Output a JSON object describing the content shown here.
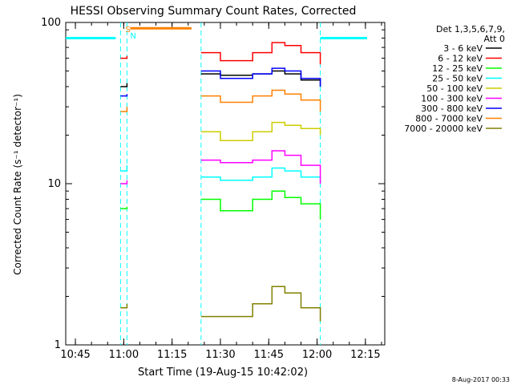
{
  "chart_data": {
    "type": "line",
    "title": "HESSI Observing Summary Count Rates, Corrected",
    "xlabel": "Start Time (19-Aug-15 10:42:02)",
    "ylabel": "Corrected Count Rate (s⁻¹ detector⁻¹)",
    "xlim": [
      "10:42",
      "12:21"
    ],
    "ylim": [
      1,
      100
    ],
    "yscale": "log",
    "x_ticks": [
      "10:45",
      "11:00",
      "11:15",
      "11:30",
      "11:45",
      "12:00",
      "12:15"
    ],
    "y_ticks": [
      "1",
      "10",
      "100"
    ],
    "legend_header": [
      "Det 1,3,5,6,7,9,",
      "Att 0"
    ],
    "legend": [
      {
        "label": "3 - 6 keV",
        "color": "#000000"
      },
      {
        "label": "6 - 12 keV",
        "color": "#ff0000"
      },
      {
        "label": "12 - 25 keV",
        "color": "#00ff00"
      },
      {
        "label": "25 - 50 keV",
        "color": "#00ffff"
      },
      {
        "label": "50 - 100 keV",
        "color": "#cccc00"
      },
      {
        "label": "100 - 300 keV",
        "color": "#ff00ff"
      },
      {
        "label": "300 - 800 keV",
        "color": "#0000ff"
      },
      {
        "label": "800 - 7000 keV",
        "color": "#ff8000"
      },
      {
        "label": "7000 - 20000 keV",
        "color": "#808000"
      }
    ],
    "markers": {
      "saa": "S",
      "night": "N"
    },
    "timestamp": "8-Aug-2017 00:33",
    "intervals": [
      [
        "10:59",
        "11:01"
      ],
      [
        "11:24",
        "12:01"
      ]
    ],
    "series": [
      {
        "name": "3 - 6 keV",
        "color": "#000000",
        "x": [
          "10:59",
          "11:01",
          "11:24",
          "11:30",
          "11:40",
          "11:46",
          "11:50",
          "11:55",
          "12:01"
        ],
        "y": [
          40,
          42,
          48,
          47,
          48,
          50,
          48,
          44,
          40
        ]
      },
      {
        "name": "6 - 12 keV",
        "color": "#ff0000",
        "x": [
          "10:59",
          "11:01",
          "11:24",
          "11:30",
          "11:40",
          "11:46",
          "11:50",
          "11:55",
          "12:01"
        ],
        "y": [
          60,
          62,
          65,
          58,
          65,
          75,
          72,
          65,
          55
        ]
      },
      {
        "name": "12 - 25 keV",
        "color": "#00ff00",
        "x": [
          "10:59",
          "11:01",
          "11:24",
          "11:30",
          "11:40",
          "11:46",
          "11:50",
          "11:55",
          "12:01"
        ],
        "y": [
          7,
          7.2,
          8,
          6.8,
          8,
          9,
          8.2,
          7.5,
          6
        ]
      },
      {
        "name": "25 - 50 keV",
        "color": "#00ffff",
        "x": [
          "10:59",
          "11:01",
          "11:24",
          "11:30",
          "11:40",
          "11:46",
          "11:50",
          "11:55",
          "12:01"
        ],
        "y": [
          12,
          13,
          11,
          10.5,
          11,
          12.5,
          12,
          11,
          10
        ]
      },
      {
        "name": "50 - 100 keV",
        "color": "#cccc00",
        "x": [
          "10:59",
          "11:01",
          "11:24",
          "11:30",
          "11:40",
          "11:46",
          "11:50",
          "11:55",
          "12:01"
        ],
        "y": [
          null,
          null,
          21,
          18.5,
          21,
          24,
          23,
          22,
          20
        ]
      },
      {
        "name": "100 - 300 keV",
        "color": "#ff00ff",
        "x": [
          "10:59",
          "11:01",
          "11:24",
          "11:30",
          "11:40",
          "11:46",
          "11:50",
          "11:55",
          "12:01"
        ],
        "y": [
          10,
          10.5,
          14,
          13.5,
          14,
          16,
          15,
          13,
          10
        ]
      },
      {
        "name": "300 - 800 keV",
        "color": "#0000ff",
        "x": [
          "10:59",
          "11:01",
          "11:24",
          "11:30",
          "11:40",
          "11:46",
          "11:50",
          "11:55",
          "12:01"
        ],
        "y": [
          35,
          36,
          50,
          45,
          48,
          52,
          50,
          45,
          40
        ]
      },
      {
        "name": "800 - 7000 keV",
        "color": "#ff8000",
        "x": [
          "10:59",
          "11:01",
          "11:24",
          "11:30",
          "11:40",
          "11:46",
          "11:50",
          "11:55",
          "12:01"
        ],
        "y": [
          28,
          30,
          35,
          32,
          35,
          38,
          36,
          33,
          28
        ]
      },
      {
        "name": "7000 - 20000 keV",
        "color": "#808000",
        "x": [
          "10:59",
          "11:01",
          "11:24",
          "11:30",
          "11:40",
          "11:46",
          "11:50",
          "11:55",
          "12:01"
        ],
        "y": [
          1.7,
          1.8,
          1.5,
          1.5,
          1.8,
          2.3,
          2.1,
          1.7,
          1.4
        ]
      }
    ]
  }
}
